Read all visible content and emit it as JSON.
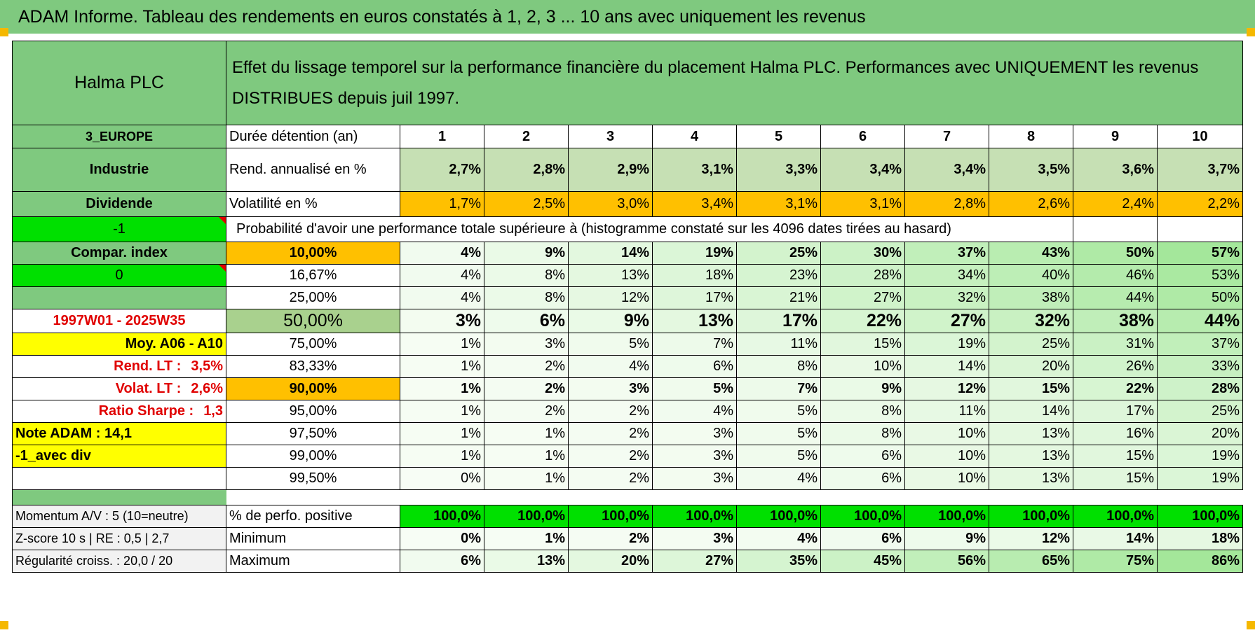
{
  "title": "ADAM Informe. Tableau des rendements en euros constatés à 1, 2, 3 ... 10 ans avec uniquement les revenus",
  "left": {
    "company": "Halma PLC",
    "region": "3_EUROPE",
    "sector": "Industrie",
    "type": "Dividende",
    "flag1": "-1",
    "compar_index": "Compar. index",
    "flag2": "0",
    "period": "1997W01 - 2025W35",
    "moy": "Moy. A06 - A10",
    "rend_lt_label": "Rend. LT :",
    "rend_lt_value": "3,5%",
    "volat_lt_label": "Volat. LT :",
    "volat_lt_value": "2,6%",
    "sharpe_label": "Ratio Sharpe :",
    "sharpe_value": "1,3",
    "note": "Note ADAM : 14,1",
    "avec_div": "-1_avec div",
    "momentum": "Momentum A/V : 5 (10=neutre)",
    "zscore": "Z-score 10 s | RE : 0,5 | 2,7",
    "regularite": "Régularité croiss. : 20,0 / 20"
  },
  "description": "Effet du lissage temporel sur la performance financière du placement Halma PLC. Performances avec UNIQUEMENT les revenus DISTRIBUES depuis juil 1997.",
  "labels": {
    "duree": "Durée détention (an)",
    "rend": "Rend. annualisé en %",
    "volat": "Volatilité en %",
    "proba": "Probabilité d'avoir une performance totale supérieure à (histogramme constaté sur les 4096 dates tirées au hasard)",
    "positive": "% de perfo. positive",
    "minimum": "Minimum",
    "maximum": "Maximum"
  },
  "years": [
    "1",
    "2",
    "3",
    "4",
    "5",
    "6",
    "7",
    "8",
    "9",
    "10"
  ],
  "rend": [
    "2,7%",
    "2,8%",
    "2,9%",
    "3,1%",
    "3,3%",
    "3,4%",
    "3,4%",
    "3,5%",
    "3,6%",
    "3,7%"
  ],
  "volat": [
    "1,7%",
    "2,5%",
    "3,0%",
    "3,4%",
    "3,1%",
    "3,1%",
    "2,8%",
    "2,6%",
    "2,4%",
    "2,2%"
  ],
  "prob_rows": [
    {
      "threshold": "10,00%",
      "values": [
        "4%",
        "9%",
        "14%",
        "19%",
        "25%",
        "30%",
        "37%",
        "43%",
        "50%",
        "57%"
      ]
    },
    {
      "threshold": "16,67%",
      "values": [
        "4%",
        "8%",
        "13%",
        "18%",
        "23%",
        "28%",
        "34%",
        "40%",
        "46%",
        "53%"
      ]
    },
    {
      "threshold": "25,00%",
      "values": [
        "4%",
        "8%",
        "12%",
        "17%",
        "21%",
        "27%",
        "32%",
        "38%",
        "44%",
        "50%"
      ]
    },
    {
      "threshold": "50,00%",
      "values": [
        "3%",
        "6%",
        "9%",
        "13%",
        "17%",
        "22%",
        "27%",
        "32%",
        "38%",
        "44%"
      ]
    },
    {
      "threshold": "75,00%",
      "values": [
        "1%",
        "3%",
        "5%",
        "7%",
        "11%",
        "15%",
        "19%",
        "25%",
        "31%",
        "37%"
      ]
    },
    {
      "threshold": "83,33%",
      "values": [
        "1%",
        "2%",
        "4%",
        "6%",
        "8%",
        "10%",
        "14%",
        "20%",
        "26%",
        "33%"
      ]
    },
    {
      "threshold": "90,00%",
      "values": [
        "1%",
        "2%",
        "3%",
        "5%",
        "7%",
        "9%",
        "12%",
        "15%",
        "22%",
        "28%"
      ]
    },
    {
      "threshold": "95,00%",
      "values": [
        "1%",
        "2%",
        "2%",
        "4%",
        "5%",
        "8%",
        "11%",
        "14%",
        "17%",
        "25%"
      ]
    },
    {
      "threshold": "97,50%",
      "values": [
        "1%",
        "1%",
        "2%",
        "3%",
        "5%",
        "8%",
        "10%",
        "13%",
        "16%",
        "20%"
      ]
    },
    {
      "threshold": "99,00%",
      "values": [
        "1%",
        "1%",
        "2%",
        "3%",
        "5%",
        "6%",
        "10%",
        "13%",
        "15%",
        "19%"
      ]
    },
    {
      "threshold": "99,50%",
      "values": [
        "0%",
        "1%",
        "2%",
        "3%",
        "4%",
        "6%",
        "10%",
        "13%",
        "15%",
        "19%"
      ]
    }
  ],
  "positive": [
    "100,0%",
    "100,0%",
    "100,0%",
    "100,0%",
    "100,0%",
    "100,0%",
    "100,0%",
    "100,0%",
    "100,0%",
    "100,0%"
  ],
  "minimum": [
    "0%",
    "1%",
    "2%",
    "3%",
    "4%",
    "6%",
    "9%",
    "12%",
    "14%",
    "18%"
  ],
  "maximum": [
    "6%",
    "13%",
    "20%",
    "27%",
    "35%",
    "45%",
    "56%",
    "65%",
    "75%",
    "86%"
  ],
  "colors": {
    "header_green": "#7fc97f",
    "bright_green": "#00e000",
    "yellow": "#ffff00",
    "orange": "#ffc000",
    "red_text": "#e00000"
  }
}
